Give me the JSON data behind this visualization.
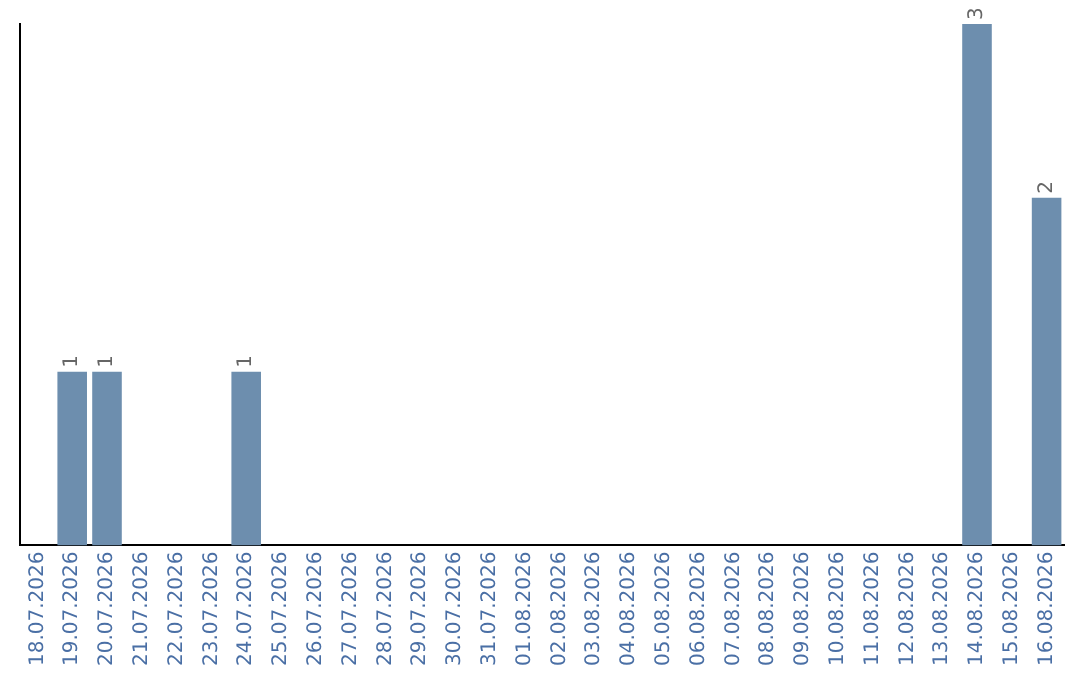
{
  "chart_data": {
    "type": "bar",
    "categories": [
      "18.07.2026",
      "19.07.2026",
      "20.07.2026",
      "21.07.2026",
      "22.07.2026",
      "23.07.2026",
      "24.07.2026",
      "25.07.2026",
      "26.07.2026",
      "27.07.2026",
      "28.07.2026",
      "29.07.2026",
      "30.07.2026",
      "31.07.2026",
      "01.08.2026",
      "02.08.2026",
      "03.08.2026",
      "04.08.2026",
      "05.08.2026",
      "06.08.2026",
      "07.08.2026",
      "08.08.2026",
      "09.08.2026",
      "10.08.2026",
      "11.08.2026",
      "12.08.2026",
      "13.08.2026",
      "14.08.2026",
      "15.08.2026",
      "16.08.2026"
    ],
    "values": [
      0,
      1,
      1,
      0,
      0,
      0,
      1,
      0,
      0,
      0,
      0,
      0,
      0,
      0,
      0,
      0,
      0,
      0,
      0,
      0,
      0,
      0,
      0,
      0,
      0,
      0,
      0,
      3,
      0,
      2
    ],
    "value_labels": [
      null,
      "1",
      "1",
      null,
      null,
      null,
      "1",
      null,
      null,
      null,
      null,
      null,
      null,
      null,
      null,
      null,
      null,
      null,
      null,
      null,
      null,
      null,
      null,
      null,
      null,
      null,
      null,
      "3",
      null,
      "2"
    ],
    "color": "#6d8eae"
  }
}
